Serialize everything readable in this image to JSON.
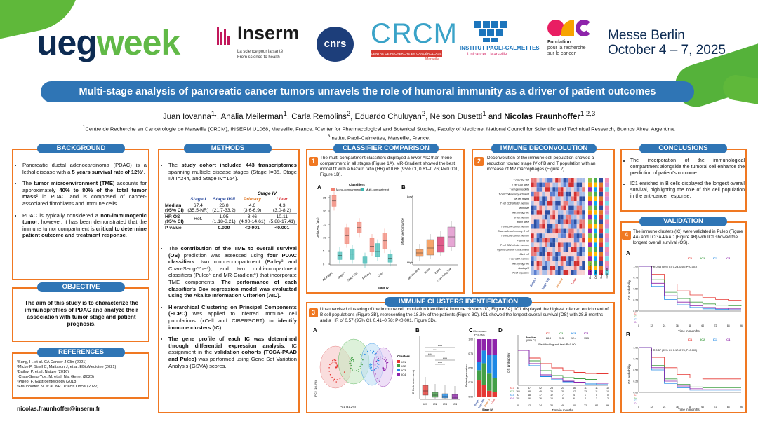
{
  "header": {
    "ueg_part1": "ueg",
    "ueg_part2": "week",
    "inserm_name": "Inserm",
    "inserm_tag1": "La science pour la santé",
    "inserm_tag2": "From science to health",
    "cnrs_name": "cnrs",
    "crcm_name": "CRCM",
    "crcm_tag": "CENTRE DE RECHERCHE EN CANCÉROLOGIE",
    "crcm_city": "Marseille",
    "ipc_name": "INSTITUT PAOLI-CALMETTES",
    "ipc_tag": "Unicancer · Marseille",
    "arc_line1": "Fondation",
    "arc_line2": "pour la recherche",
    "arc_line3": "sur le cancer",
    "messe_line1": "Messe Berlin",
    "messe_line2": "October 4 – 7, 2025",
    "colors": {
      "title_blue": "#2f75b5",
      "panel_orange": "#f07822",
      "ueg_navy": "#0d2b52",
      "ueg_green": "#61b947"
    }
  },
  "title": "Multi-stage analysis of pancreatic cancer tumors unravels the role of humoral immunity as a driver of patient outcomes",
  "authors": {
    "a1": "Juan Iovanna",
    "a1s": "1,",
    "a2": "Analia Meilerman",
    "a2s": "1",
    "a3": "Carla Remolins",
    "a3s": "2",
    "a4": "Eduardo Chuluyan",
    "a4s": "2",
    "a5": "Nelson Dusetti",
    "a5s": "1",
    "a6": "Nicolas Fraunhoffer",
    "a6s": "1,2,3",
    "sep": ", ",
    "and": " and "
  },
  "affiliations": {
    "line1": "Centre de Recherche en Cancérologie de Marseille (CRCM), INSERM U1068, Marseille, France. ²Center for Pharmacological and Botanical Studies, Faculty of Medicine, National Council for Scientific and Technical Research, Buenos Aires, Argentina.",
    "line1_sup": "1",
    "line2": "Institut Paoli-Calmettes, Marseille, France.",
    "line2_sup": "3"
  },
  "background": {
    "heading": "BACKGROUND",
    "b1_a": "Pancreatic ductal adenocarcinoma (PDAC) is a lethal disease with a ",
    "b1_b": "5 years survival rate of 12%",
    "b1_c": "¹.",
    "b2_a": "The ",
    "b2_b": "tumor microenvironment (TME)",
    "b2_c": " accounts for approximately ",
    "b2_d": "40% to 80% of the total tumor mass",
    "b2_e": "² in PDAC and is composed of cancer-associated fibroblasts and immune cells.",
    "b3_a": "PDAC is typically considered a ",
    "b3_b": "non-immunogenic tumor",
    "b3_c": ", however, it has been demonstrated that the immune tumor compartment is ",
    "b3_d": "critical to determine patient outcome and treatment response",
    "b3_e": "."
  },
  "objective": {
    "heading": "OBJECTIVE",
    "text": "The aim of this study is to characterize the immunoprofiles of PDAC and analyze their association with tumor stage and patient prognosis."
  },
  "references": {
    "heading": "REFERENCES",
    "items": [
      "¹Sung, H. et al. CA Cancer J Clin (2021)",
      "²Micke P, Strell C, Mattsson J, et al. EBioMedicine (2021)",
      "³Bailey, P. et al. Nature (2016)",
      "⁴Chan-Seng-Yue, M. et al. Nat Genet (2020)",
      "⁵Puleo, F. Gastroenterology (2018)",
      "⁶Fraunhoffer, N. et al. NPJ Precis Oncol (2022)"
    ],
    "email": "nicolas.fraunhoffer@inserm.fr"
  },
  "methods": {
    "heading": "METHODS",
    "m1_a": "The ",
    "m1_b": "study cohort included 443 transcriptomes",
    "m1_c": " spanning multiple disease stages (Stage I=35, Stage II/III=244, and Stage IV=164).",
    "table": {
      "stage_iv": "Stage  IV",
      "col1": "Stage  I",
      "col2": "Stage II/III",
      "col3": "Primary",
      "col4": "Liver",
      "r1_label": "Median",
      "r1_label2": "(95% CI)",
      "r1_c1": "67.4",
      "r1_c1b": "(35.5-NR)",
      "r1_c2": "26.8",
      "r1_c2b": "(21.7-33.2)",
      "r1_c3": "4.6",
      "r1_c3b": "(3.6-6.9)",
      "r1_c4": "4.3",
      "r1_c4b": "(3.0-8.2)",
      "r2_label": "HR OS",
      "r2_label2": "(95% CI)",
      "r2_c1": "Ref.",
      "r2_c2": "1.95",
      "r2_c2b": "(1.18-3.21)",
      "r2_c3": "8.46",
      "r2_c3b": "(4.90-14.61)",
      "r2_c4": "10.11",
      "r2_c4b": "(5.88-17.41)",
      "r3_label": "P value",
      "r3_c2": "0.009",
      "r3_c3": "<0.001",
      "r3_c4": "<0.001"
    },
    "m2_a": "The ",
    "m2_b": "contribution of the TME to overall survival (OS)",
    "m2_c": " prediction was assessed using ",
    "m2_d": "four PDAC classifiers",
    "m2_e": ": two mono-compartment (Bailey³ and Chan-Seng-Yue⁴), and two multi-compartment classifiers (Puleo⁵ and MR-Gradient⁶) that incorporate TME components. ",
    "m2_f": "The performance of each classifier's Cox regression model was evaluated using the Akaike Information Criterion (AIC).",
    "m3_a": "Hierarchical Clustering on Principal Components (HCPC)",
    "m3_b": " was applied to inferred immune cell populations (xCell and CIBERSORT) to ",
    "m3_c": "identify immune clusters (IC)",
    "m3_d": ".",
    "m4_a": "The gene profile of each IC was determined through differential expression analysis",
    "m4_b": ". IC assignment in the ",
    "m4_c": "validation cohorts (TCGA-PAAD and Puleo)",
    "m4_d": " was performed using Gene Set Variation Analysis (GSVA) scores."
  },
  "classifier": {
    "heading": "CLASSIFIER COMPARISON",
    "num": "1",
    "text": "The multi-compartment classifiers displayed a lower AIC than mono-compartment in all stages (Figure 1A). MR-Gradient showed the best model fit with a hazard ratio (HR) of 0.68 (95% CI, 0.61–0.76; P<0.001, Figure 1B).",
    "labelA": "A",
    "labelB": "B",
    "legend_title": "Classifiers",
    "legend_mono": "Mono-compartment",
    "legend_multi": "Multi-compartment",
    "ylabA": "Delta AIC (a.u)",
    "ylabB": "Model performance",
    "low": "Low",
    "high": "High",
    "xA": [
      "All stages",
      "Stage I",
      "Stage II/III",
      "Primary",
      "Liver"
    ],
    "xA_title": "Stage IV",
    "xB": [
      "MR-Gradient",
      "Puleo",
      "Bailey",
      "Chan-Seng-Yue"
    ],
    "ticksA": [
      "25",
      "20",
      "15",
      "10",
      "5",
      "0"
    ]
  },
  "immune_deconv": {
    "heading": "IMMUNE DECONVOLUTION",
    "num": "2",
    "text": "Deconvolution of the immune cell population showed a reduction toward stage IV of B and T population with an increase of M2 macrophages (Figure 2).",
    "rows": [
      "T cell CD4 Th2",
      "T cell CD8 naive",
      "T cell gamma delta",
      "T cell CD4 memory activated",
      "NK cell resting",
      "T cell CD8 effector memory",
      "Monocyte",
      "Macrophage M2",
      "B cell memory",
      "B cell naive",
      "T cell CD4 central memory",
      "Class-switched memory B cell",
      "T cell CD8 central memory",
      "Plasma cell",
      "T cell CD4 effector memory",
      "Myeloid dendritic cell activated",
      "Mast cell",
      "T cell CD4 memory",
      "Macrophage M1",
      "Neutrophil",
      "T cell regulatory"
    ],
    "xlabels": [
      "Stage I",
      "Stage II/III",
      "Primary",
      "Liver"
    ],
    "side_labels": [
      "Deconvolution",
      "Cell type",
      "Stage",
      "Tumor site"
    ]
  },
  "clusters": {
    "heading": "IMMUNE CLUSTERS IDENTIFICATION",
    "num": "3",
    "text": "Unsupervised clustering of the immune cell population identified 4 immune clusters (IC, Figure 3A). IC1 displayed the highest inferred enrichment of B cell populations (Figure 3B), representing the 18.3% of the patients (Figure 3C). IC1 showed the longest overall survival (OS) with 28.8 months and a HR of 0.57 (95% CI, 0.41–0.78; P<0.001, Figure 3D).",
    "labelA": "A",
    "labelB": "B",
    "labelC": "C",
    "labelD": "D",
    "pc1": "PC1 (41.2%)",
    "pc2": "PC2 (10.6%)",
    "clusters_title": "Clusters",
    "ics": [
      "IC1",
      "IC2",
      "IC3",
      "IC4"
    ],
    "ylabB": "B Cells score (a.u.)",
    "ylabC": "Patient proportion",
    "ylabD": "OS probability",
    "stars": "****",
    "chi": "Chi-square",
    "chi_p": "P<0.001",
    "xC": [
      "Stage I",
      "Stage II/III",
      "Primary",
      "Liver"
    ],
    "xC_title": "Stage IV",
    "ticksC": [
      "1.00",
      "0.75",
      "0.50",
      "0.25",
      "0.00"
    ],
    "km_median": "Median",
    "km_ci": "(95% CI)",
    "km_vals": [
      "28.8",
      "20.5",
      "12.4",
      "13.5"
    ],
    "km_test": "Stratified logrank test: P<0.001",
    "km_xlab": "Time in months",
    "km_ticks": [
      "0",
      "12",
      "24",
      "36",
      "48",
      "60",
      "72",
      "84",
      "96"
    ],
    "risk": [
      [
        "81",
        "57",
        "42",
        "28",
        "21",
        "16",
        "11",
        "11",
        "10"
      ],
      [
        "165",
        "98",
        "45",
        "25",
        "20",
        "17",
        "13",
        "11",
        "10"
      ],
      [
        "97",
        "48",
        "17",
        "12",
        "7",
        "4",
        "1",
        "0",
        "0"
      ],
      [
        "101",
        "66",
        "26",
        "16",
        "8",
        "6",
        "4",
        "3",
        "2"
      ]
    ]
  },
  "conclusions": {
    "heading": "CONCLUSIONS",
    "c1": "The incorporation of the immunological compartment alongside the tumoral cell enhance the prediction of patient's outcome.",
    "c2": "IC1 enriched in B cells displayed the longest overall survival, highlighting the role of this cell population in the anti-cancer response."
  },
  "validation": {
    "heading": "VALIDATION",
    "num": "4",
    "text": "The immune clusters (IC) were validated in Puleo (Figure 4A) and TCGA-PAAD (Figure 4B) with IC1 showed the longest overall survival (OS).",
    "labelA": "A",
    "labelB": "B",
    "ylab": "OS probability",
    "xlab": "Time in months",
    "hrA": "HR:0.43 (95% CI, 0.28–0.66; P<0.001)",
    "hrB": "HR:0.57 (95% CI, 0.17–0.78; P=0.005)",
    "ics": [
      "IC1",
      "IC2",
      "IC3",
      "IC4"
    ],
    "ticks": [
      "0",
      "12",
      "24",
      "36",
      "48",
      "60",
      "72",
      "84",
      "96"
    ],
    "yticks": [
      "1.00",
      "0.75",
      "0.50",
      "0.25",
      "0.00"
    ]
  },
  "chart_data": [
    {
      "type": "line",
      "title": "",
      "xlabel": "Time in months",
      "ylabel": "OS probability",
      "x": [
        0,
        12,
        24,
        36,
        48,
        60,
        72,
        84,
        96
      ],
      "ylim": [
        0,
        1
      ],
      "series": [
        {
          "name": "IC1",
          "values": [
            1.0,
            0.78,
            0.62,
            0.5,
            0.42,
            0.37,
            0.34,
            0.33,
            0.32
          ]
        },
        {
          "name": "IC2",
          "values": [
            1.0,
            0.7,
            0.42,
            0.28,
            0.22,
            0.19,
            0.17,
            0.15,
            0.14
          ]
        },
        {
          "name": "IC3",
          "values": [
            1.0,
            0.56,
            0.25,
            0.16,
            0.1,
            0.07,
            0.04,
            0.02,
            0.02
          ]
        },
        {
          "name": "IC4",
          "values": [
            1.0,
            0.62,
            0.3,
            0.2,
            0.12,
            0.09,
            0.07,
            0.06,
            0.05
          ]
        }
      ]
    }
  ]
}
